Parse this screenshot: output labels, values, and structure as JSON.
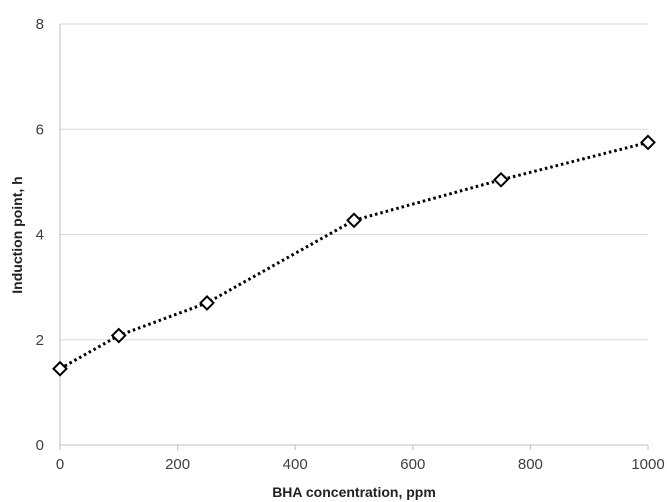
{
  "chart_data": {
    "type": "line",
    "title": "",
    "xlabel": "BHA concentration, ppm",
    "ylabel": "Induction point, h",
    "xlim": [
      0,
      1000
    ],
    "ylim": [
      0,
      8
    ],
    "xticks": [
      "0",
      "200",
      "400",
      "600",
      "800",
      "1000"
    ],
    "yticks": [
      "0",
      "2",
      "4",
      "6",
      "8"
    ],
    "grid": "horizontal",
    "legend": "none",
    "series": [
      {
        "x": [
          0,
          100,
          250,
          500,
          750,
          1000
        ],
        "y": [
          1.45,
          2.08,
          2.7,
          4.27,
          5.04,
          5.75
        ],
        "line_style": "dotted",
        "marker": "diamond-open",
        "color": "#000000"
      }
    ]
  }
}
